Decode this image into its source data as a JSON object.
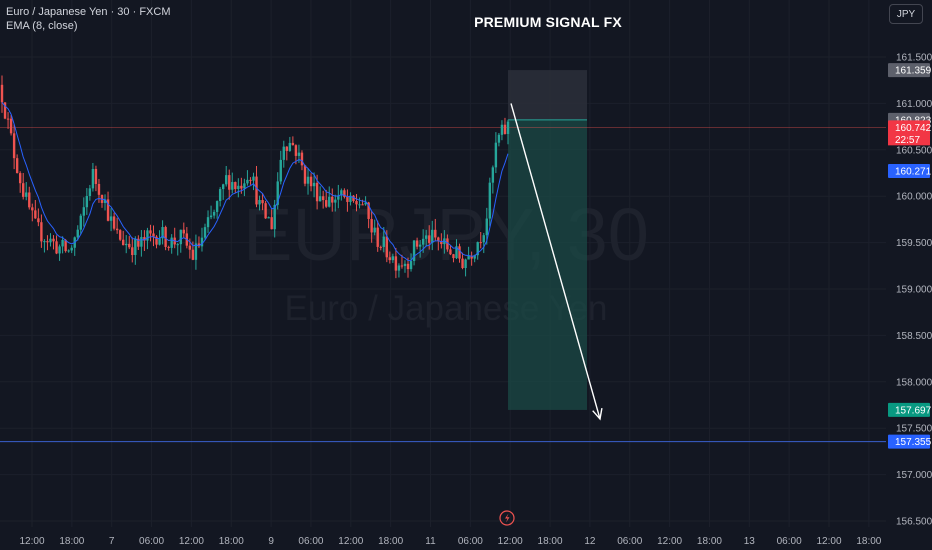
{
  "header": {
    "symbol_line": "Euro / Japanese Yen · 30 · FXCM",
    "indicator_line": "EMA (8, close)",
    "title": "PREMIUM SIGNAL FX",
    "currency_button": "JPY"
  },
  "watermark": {
    "symbol": "EURJPY, 30",
    "name": "Euro / Japanese Yen"
  },
  "colors": {
    "background": "#131722",
    "up": "#26a69a",
    "down": "#ef5350",
    "ema": "#2962ff",
    "target_zone": "#1b4a45",
    "stop_zone": "#2a2e39",
    "support_line": "#3a5fcd"
  },
  "chart_data": {
    "type": "candlestick",
    "symbol": "EURJPY",
    "timeframe": "30",
    "y_range": [
      156.45,
      161.72
    ],
    "y_ticks": [
      "161.500",
      "161.000",
      "160.500",
      "160.000",
      "159.500",
      "159.000",
      "158.500",
      "158.000",
      "157.500",
      "157.000",
      "156.500"
    ],
    "x_ticks": [
      "12:00",
      "18:00",
      "7",
      "06:00",
      "12:00",
      "18:00",
      "9",
      "06:00",
      "12:00",
      "18:00",
      "11",
      "06:00",
      "12:00",
      "18:00",
      "12",
      "06:00",
      "12:00",
      "18:00",
      "13",
      "06:00",
      "12:00",
      "18:00"
    ],
    "close_path": [
      161.1,
      160.5,
      160.0,
      159.65,
      159.55,
      159.45,
      159.4,
      159.7,
      160.25,
      160.0,
      159.6,
      159.5,
      159.45,
      159.55,
      159.6,
      159.5,
      159.55,
      159.35,
      159.6,
      159.85,
      160.2,
      160.1,
      160.3,
      159.85,
      159.7,
      160.6,
      160.55,
      160.2,
      160.05,
      159.95,
      160.0,
      159.9,
      159.95,
      159.6,
      159.45,
      159.3,
      159.3,
      159.5,
      159.55,
      159.5,
      159.4,
      159.3,
      159.45,
      159.7,
      160.6,
      160.75
    ],
    "ema_period": 8,
    "price_labels": [
      {
        "value": "161.359",
        "price": 161.359,
        "kind": "stop"
      },
      {
        "value": "160.823",
        "price": 160.823,
        "kind": "entry"
      },
      {
        "value": "160.742",
        "price": 160.742,
        "kind": "last"
      },
      {
        "value": "22:57",
        "kind": "countdown"
      },
      {
        "value": "160.271",
        "price": 160.271,
        "kind": "ema"
      },
      {
        "value": "157.697",
        "price": 157.697,
        "kind": "target"
      },
      {
        "value": "157.355",
        "price": 157.355,
        "kind": "line"
      }
    ],
    "position": {
      "direction": "short",
      "entry": 160.823,
      "stop": 161.359,
      "target": 157.697
    },
    "horizontal_line": 157.355,
    "last_price_line": 160.742
  }
}
